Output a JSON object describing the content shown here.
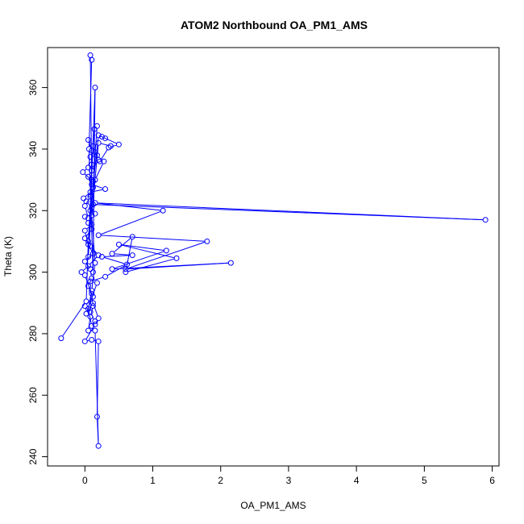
{
  "chart_data": {
    "type": "scatter",
    "title": "ATOM2 Northbound OA_PM1_AMS",
    "xlabel": "OA_PM1_AMS",
    "ylabel": "Theta (K)",
    "xlim": [
      -0.55,
      6.1
    ],
    "ylim": [
      237,
      373
    ],
    "x_ticks": [
      0,
      1,
      2,
      3,
      4,
      5,
      6
    ],
    "y_ticks": [
      240,
      260,
      280,
      300,
      320,
      340,
      360
    ],
    "grid": false,
    "legend": "none",
    "color": "#0000ff",
    "marker": "open-circle",
    "connected": true,
    "points": [
      [
        -0.35,
        278.5
      ],
      [
        0.02,
        290.5
      ],
      [
        0.05,
        310.0
      ],
      [
        0.1,
        330.0
      ],
      [
        0.08,
        370.5
      ],
      [
        0.1,
        369.0
      ],
      [
        0.06,
        340.0
      ],
      [
        0.12,
        300.0
      ],
      [
        0.15,
        360.0
      ],
      [
        0.09,
        325.0
      ],
      [
        0.05,
        305.0
      ],
      [
        0.18,
        347.5
      ],
      [
        0.14,
        346.5
      ],
      [
        0.1,
        335.0
      ],
      [
        0.08,
        320.0
      ],
      [
        0.2,
        344.5
      ],
      [
        0.3,
        343.5
      ],
      [
        0.25,
        344.0
      ],
      [
        0.5,
        341.5
      ],
      [
        0.35,
        340.5
      ],
      [
        0.22,
        336.0
      ],
      [
        0.28,
        336.0
      ],
      [
        0.15,
        330.0
      ],
      [
        0.12,
        322.0
      ],
      [
        5.9,
        317.0
      ],
      [
        0.15,
        322.5
      ],
      [
        1.15,
        320.0
      ],
      [
        0.2,
        312.0
      ],
      [
        1.8,
        310.0
      ],
      [
        0.6,
        301.0
      ],
      [
        2.15,
        303.0
      ],
      [
        0.4,
        301.0
      ],
      [
        1.2,
        307.0
      ],
      [
        0.5,
        309.0
      ],
      [
        1.35,
        304.5
      ],
      [
        0.6,
        300.0
      ],
      [
        0.7,
        311.5
      ],
      [
        0.4,
        306.0
      ],
      [
        0.7,
        305.5
      ],
      [
        0.25,
        305.0
      ],
      [
        0.62,
        302.5
      ],
      [
        0.3,
        298.5
      ],
      [
        0.08,
        297.0
      ],
      [
        0.18,
        296.5
      ],
      [
        0.02,
        286.5
      ],
      [
        0.12,
        290.0
      ],
      [
        0.2,
        285.0
      ],
      [
        0.15,
        283.0
      ],
      [
        0.0,
        277.5
      ],
      [
        0.1,
        278.0
      ],
      [
        0.2,
        277.5
      ],
      [
        0.18,
        253.0
      ],
      [
        0.2,
        243.5
      ],
      [
        0.15,
        281.0
      ],
      [
        0.05,
        281.0
      ],
      [
        0.08,
        285.5
      ],
      [
        0.12,
        289.0
      ],
      [
        0.1,
        293.0
      ],
      [
        0.0,
        299.0
      ],
      [
        -0.05,
        300.0
      ],
      [
        0.05,
        302.0
      ],
      [
        0.2,
        305.5
      ],
      [
        0.08,
        308.5
      ],
      [
        0.0,
        311.0
      ],
      [
        0.1,
        314.0
      ],
      [
        0.05,
        316.0
      ],
      [
        0.0,
        318.0
      ],
      [
        0.15,
        319.0
      ],
      [
        0.1,
        321.0
      ],
      [
        0.02,
        323.0
      ],
      [
        -0.02,
        324.0
      ],
      [
        0.08,
        326.0
      ],
      [
        0.3,
        327.0
      ],
      [
        0.1,
        328.5
      ],
      [
        0.12,
        329.5
      ],
      [
        -0.03,
        332.5
      ],
      [
        0.05,
        334.0
      ],
      [
        0.08,
        337.5
      ],
      [
        0.18,
        338.0
      ],
      [
        0.1,
        339.5
      ],
      [
        0.05,
        343.0
      ],
      [
        0.12,
        341.0
      ],
      [
        0.15,
        339.0
      ],
      [
        0.2,
        336.5
      ],
      [
        0.1,
        333.0
      ],
      [
        0.05,
        331.0
      ],
      [
        0.12,
        327.5
      ],
      [
        0.08,
        324.5
      ],
      [
        0.0,
        321.5
      ],
      [
        0.05,
        317.5
      ],
      [
        0.1,
        315.5
      ],
      [
        0.0,
        313.5
      ],
      [
        0.05,
        309.0
      ],
      [
        0.12,
        306.0
      ],
      [
        0.0,
        303.5
      ],
      [
        0.08,
        301.0
      ],
      [
        0.1,
        298.0
      ],
      [
        0.05,
        295.5
      ],
      [
        0.12,
        292.0
      ],
      [
        0.0,
        289.0
      ],
      [
        0.08,
        287.0
      ],
      [
        0.15,
        284.0
      ],
      [
        0.1,
        282.5
      ],
      [
        0.05,
        288.0
      ],
      [
        0.1,
        294.0
      ],
      [
        0.15,
        303.0
      ],
      [
        0.1,
        318.5
      ],
      [
        0.2,
        342.0
      ],
      [
        0.38,
        341.0
      ]
    ]
  }
}
